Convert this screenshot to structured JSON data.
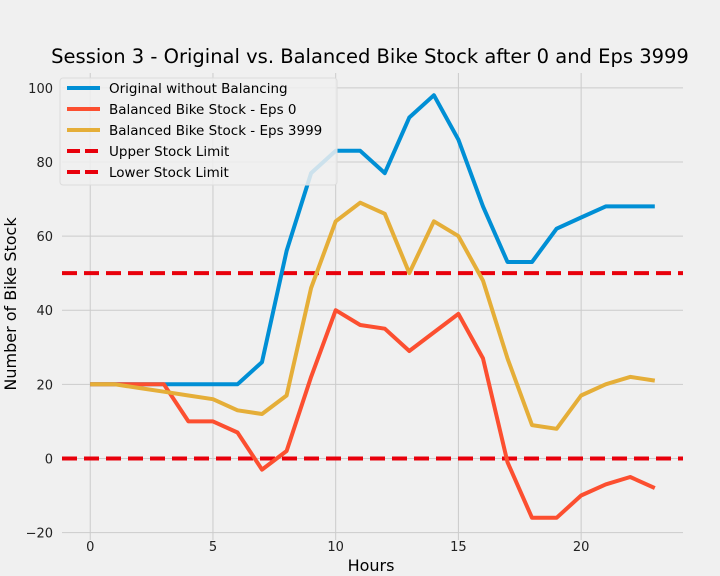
{
  "chart_data": {
    "type": "line",
    "title": "Session 3 - Original vs. Balanced Bike Stock after 0 and Eps 3999",
    "xlabel": "Hours",
    "ylabel": "Number of Bike Stock",
    "xlim": [
      -1.15,
      24.15
    ],
    "ylim": [
      -22,
      104
    ],
    "xticks": [
      0,
      5,
      10,
      15,
      20
    ],
    "yticks": [
      -20,
      0,
      20,
      40,
      60,
      80,
      100
    ],
    "grid": true,
    "legend_position": "top-left",
    "x": [
      0,
      1,
      2,
      3,
      4,
      5,
      6,
      7,
      8,
      9,
      10,
      11,
      12,
      13,
      14,
      15,
      16,
      17,
      18,
      19,
      20,
      21,
      22,
      23
    ],
    "series": [
      {
        "name": "Original without Balancing",
        "color": "#008fd5",
        "values": [
          20,
          20,
          20,
          20,
          20,
          20,
          20,
          26,
          56,
          77,
          83,
          83,
          77,
          92,
          98,
          86,
          68,
          53,
          53,
          62,
          65,
          68,
          68,
          68
        ]
      },
      {
        "name": "Balanced Bike Stock - Eps 0",
        "color": "#fc4f30",
        "values": [
          20,
          20,
          20,
          20,
          10,
          10,
          7,
          -3,
          2,
          22,
          40,
          36,
          35,
          29,
          34,
          39,
          27,
          -1,
          -16,
          -16,
          -10,
          -7,
          -5,
          -8
        ]
      },
      {
        "name": "Balanced Bike Stock - Eps 3999",
        "color": "#e5ae38",
        "values": [
          20,
          20,
          19,
          18,
          17,
          16,
          13,
          12,
          17,
          46,
          64,
          69,
          66,
          50,
          64,
          60,
          48,
          27,
          9,
          8,
          17,
          20,
          22,
          21
        ]
      }
    ],
    "hlines": [
      {
        "name": "Upper Stock Limit",
        "y": 50,
        "color": "#e8000b",
        "style": "dashed"
      },
      {
        "name": "Lower Stock Limit",
        "y": 0,
        "color": "#e8000b",
        "style": "dashed"
      }
    ]
  }
}
